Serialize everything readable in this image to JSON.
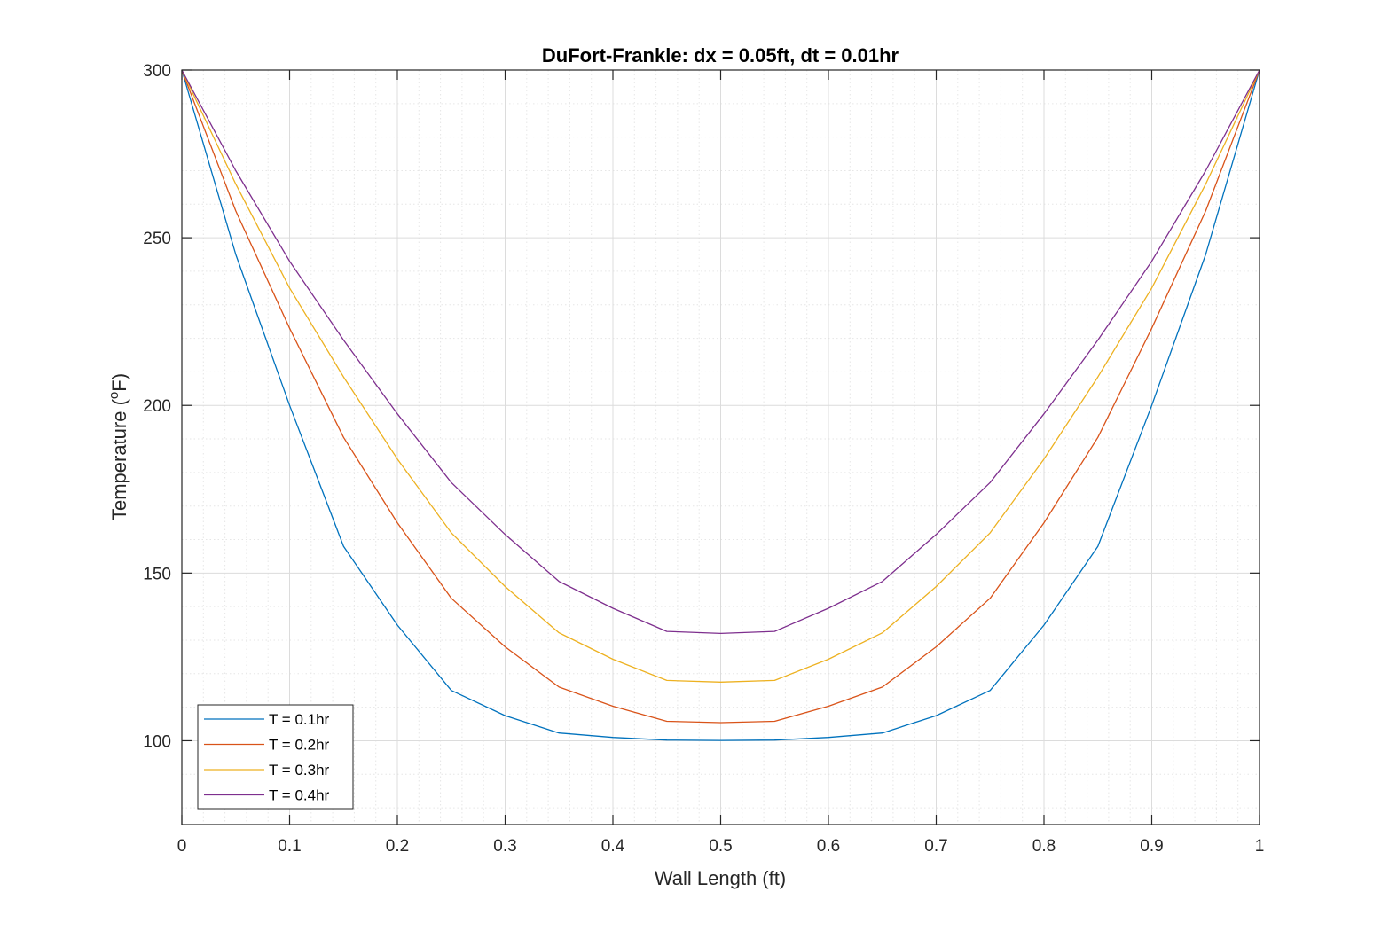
{
  "chart_data": {
    "type": "line",
    "title": "DuFort-Frankle: dx = 0.05ft, dt = 0.01hr",
    "xlabel": "Wall Length (ft)",
    "ylabel": "Temperature (",
    "ylabel_sup": "o",
    "ylabel_tail": "F)",
    "xlim": [
      0,
      1
    ],
    "ylim": [
      75,
      300
    ],
    "xticks": [
      0,
      0.1,
      0.2,
      0.3,
      0.4,
      0.5,
      0.6,
      0.7,
      0.8,
      0.9,
      1
    ],
    "xtick_labels": [
      "0",
      "0.1",
      "0.2",
      "0.3",
      "0.4",
      "0.5",
      "0.6",
      "0.7",
      "0.8",
      "0.9",
      "1"
    ],
    "yticks": [
      100,
      150,
      200,
      250,
      300
    ],
    "ytick_labels": [
      "100",
      "150",
      "200",
      "250",
      "300"
    ],
    "grid": true,
    "minor_grid": true,
    "legend_position": "bottom-left",
    "x": [
      0,
      0.05,
      0.1,
      0.15,
      0.2,
      0.25,
      0.3,
      0.35,
      0.4,
      0.45,
      0.5,
      0.55,
      0.6,
      0.65,
      0.7,
      0.75,
      0.8,
      0.85,
      0.9,
      0.95,
      1
    ],
    "series": [
      {
        "name": "T = 0.1hr",
        "color": "#0072BD",
        "values": [
          300,
          245,
          200,
          158,
          134.5,
          115,
          107.5,
          102.3,
          101,
          100.2,
          100.1,
          100.2,
          101,
          102.3,
          107.5,
          115,
          134.5,
          158,
          200,
          245,
          300
        ]
      },
      {
        "name": "T = 0.2hr",
        "color": "#D95319",
        "values": [
          300,
          258,
          223,
          190.5,
          165,
          142.5,
          128,
          116,
          110.3,
          105.8,
          105.4,
          105.8,
          110.3,
          116,
          128,
          142.5,
          165,
          190.5,
          223,
          258,
          300
        ]
      },
      {
        "name": "T = 0.3hr",
        "color": "#EDB120",
        "values": [
          300,
          266,
          235,
          208.5,
          184,
          162,
          146,
          132.2,
          124.3,
          118,
          117.5,
          118,
          124.3,
          132.2,
          146,
          162,
          184,
          208.5,
          235,
          266,
          300
        ]
      },
      {
        "name": "T = 0.4hr",
        "color": "#7E2F8E",
        "values": [
          300,
          270,
          243,
          219.5,
          197.5,
          177,
          161.5,
          147.5,
          139.5,
          132.6,
          132,
          132.6,
          139.5,
          147.5,
          161.5,
          177,
          197.5,
          219.5,
          243,
          270,
          300
        ]
      }
    ]
  }
}
